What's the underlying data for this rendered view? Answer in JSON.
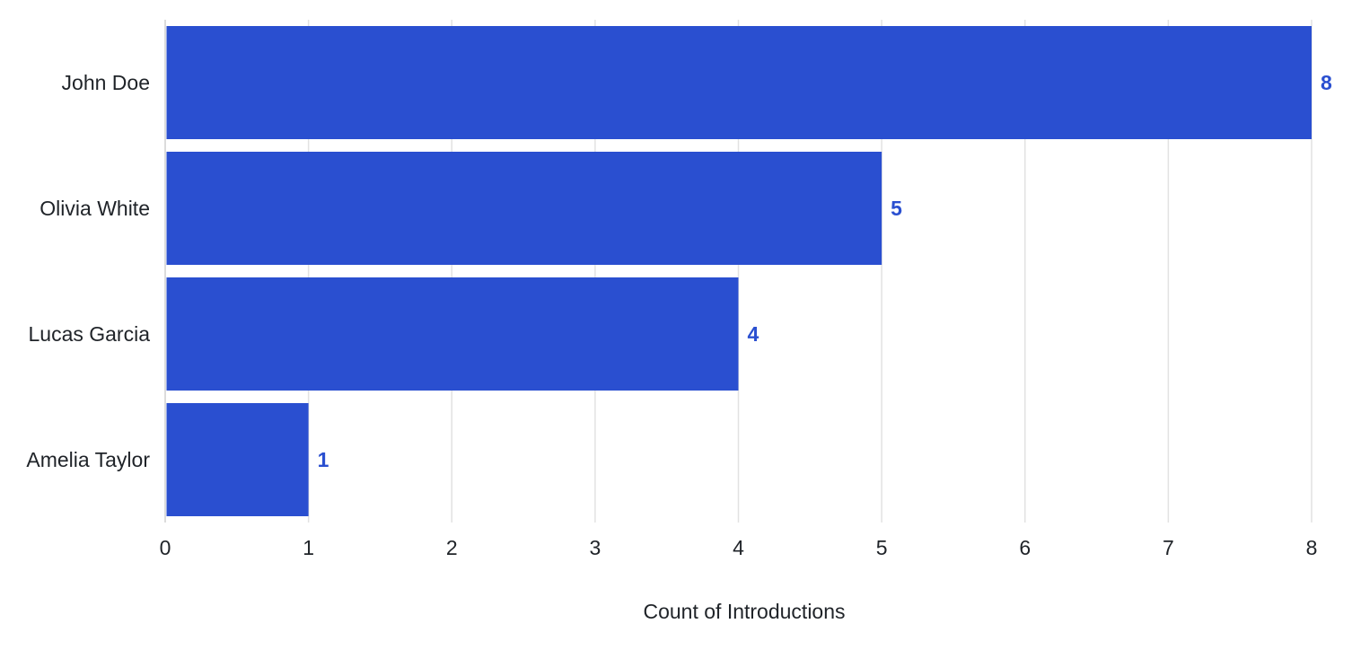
{
  "chart_data": {
    "type": "bar",
    "orientation": "horizontal",
    "categories": [
      "John Doe",
      "Olivia White",
      "Lucas Garcia",
      "Amelia Taylor"
    ],
    "values": [
      8,
      5,
      4,
      1
    ],
    "data_labels": [
      "8",
      "5",
      "4",
      "1"
    ],
    "title": "",
    "xlabel": "Count of Introductions",
    "ylabel": "",
    "xlim": [
      0,
      8
    ],
    "xticks": [
      "0",
      "1",
      "2",
      "3",
      "4",
      "5",
      "6",
      "7",
      "8"
    ],
    "grid": "vertical",
    "legend": "none",
    "bar_color": "#2a4fd0",
    "label_color": "#2a4fd0"
  }
}
